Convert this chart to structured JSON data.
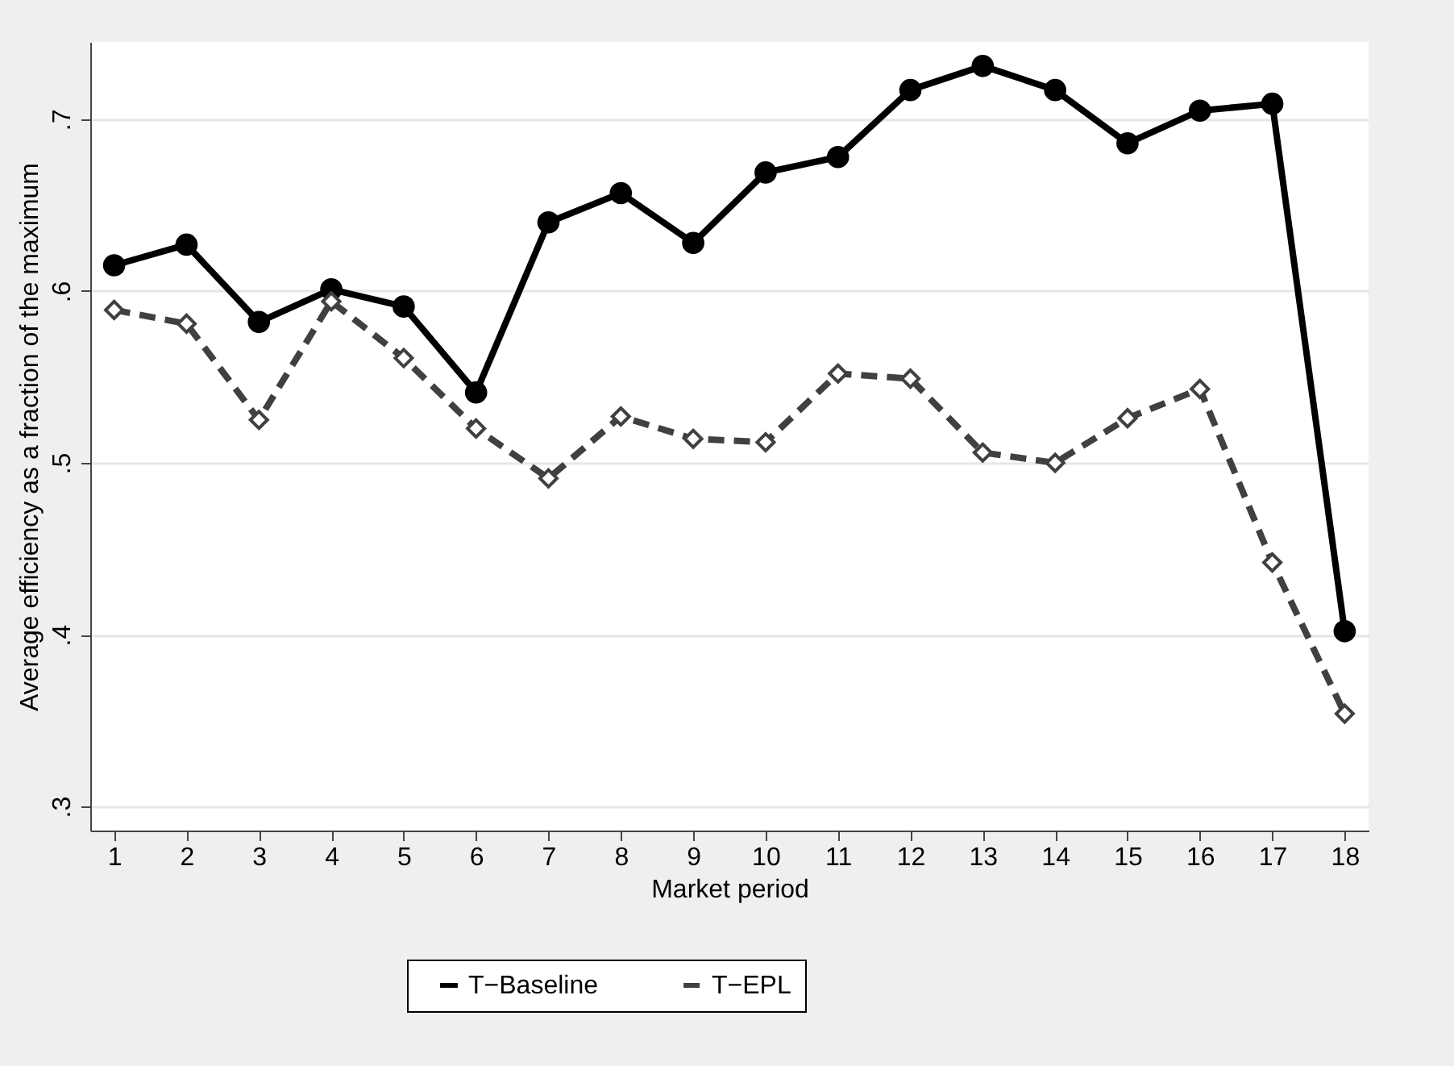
{
  "chart_data": {
    "type": "line",
    "xlabel": "Market period",
    "ylabel": "Average efficiency as a fraction of the maximum",
    "x": [
      1,
      2,
      3,
      4,
      5,
      6,
      7,
      8,
      9,
      10,
      11,
      12,
      13,
      14,
      15,
      16,
      17,
      18
    ],
    "series": [
      {
        "name": "T−Baseline",
        "color": "#000000",
        "marker": "circle",
        "line_style": "solid",
        "values": [
          0.615,
          0.627,
          0.582,
          0.601,
          0.591,
          0.541,
          0.64,
          0.657,
          0.628,
          0.669,
          0.678,
          0.717,
          0.731,
          0.717,
          0.686,
          0.705,
          0.709,
          0.402
        ]
      },
      {
        "name": "T−EPL",
        "color": "#404040",
        "marker": "diamond",
        "line_style": "dashed",
        "values": [
          0.589,
          0.581,
          0.525,
          0.594,
          0.561,
          0.52,
          0.491,
          0.527,
          0.514,
          0.512,
          0.552,
          0.549,
          0.506,
          0.5,
          0.526,
          0.543,
          0.442,
          0.354
        ]
      }
    ],
    "xlim": [
      0.67,
      18.33
    ],
    "xticks": [
      1,
      2,
      3,
      4,
      5,
      6,
      7,
      8,
      9,
      10,
      11,
      12,
      13,
      14,
      15,
      16,
      17,
      18
    ],
    "ylim": [
      0.286,
      0.745
    ],
    "yticks": [
      {
        "value": 0.3,
        "label": ".3"
      },
      {
        "value": 0.4,
        "label": ".4"
      },
      {
        "value": 0.5,
        "label": ".5"
      },
      {
        "value": 0.6,
        "label": ".6"
      },
      {
        "value": 0.7,
        "label": ".7"
      }
    ],
    "grid": "y",
    "legend": "bottom"
  }
}
